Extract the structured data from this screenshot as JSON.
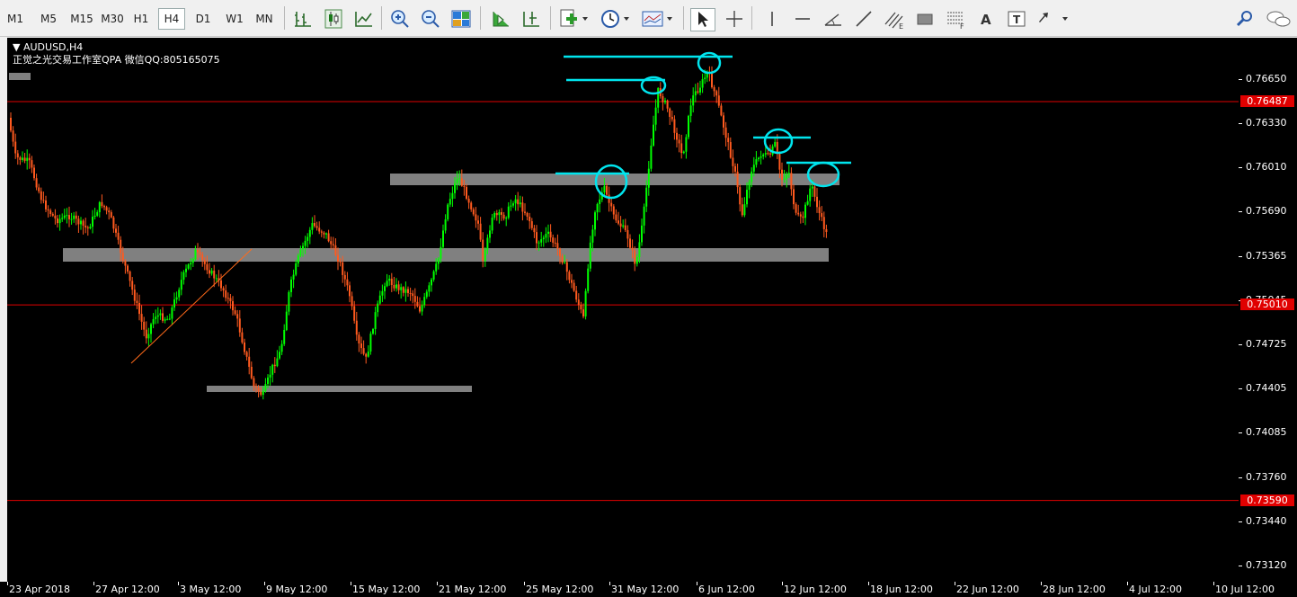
{
  "toolbar": {
    "timeframes": [
      "M1",
      "M5",
      "M15",
      "M30",
      "H1",
      "H4",
      "D1",
      "W1",
      "MN"
    ],
    "active_timeframe": "H4"
  },
  "chart": {
    "symbol_label": "AUDUSD,H4",
    "watermark_text": "正觉之光交易工作室QPA 微信QQ:805165075",
    "bull_color": "#00ff00",
    "bear_color": "#ff5a1f",
    "hline_color": "#e00000",
    "zone_color": "#808080",
    "marker_color": "#00e5ee"
  },
  "price_scale": {
    "ticks": [
      "0.76650",
      "0.76330",
      "0.76010",
      "0.75690",
      "0.75365",
      "0.75045",
      "0.74725",
      "0.74405",
      "0.74085",
      "0.73760",
      "0.73440",
      "0.73120"
    ],
    "levels": [
      "0.76487",
      "0.75010",
      "0.73590"
    ]
  },
  "time_scale": {
    "labels": [
      "23 Apr 2018",
      "27 Apr 12:00",
      "3 May 12:00",
      "9 May 12:00",
      "15 May 12:00",
      "21 May 12:00",
      "25 May 12:00",
      "31 May 12:00",
      "6 Jun 12:00",
      "12 Jun 12:00",
      "18 Jun 12:00",
      "22 Jun 12:00",
      "28 Jun 12:00",
      "4 Jul 12:00",
      "10 Jul 12:00"
    ]
  }
}
